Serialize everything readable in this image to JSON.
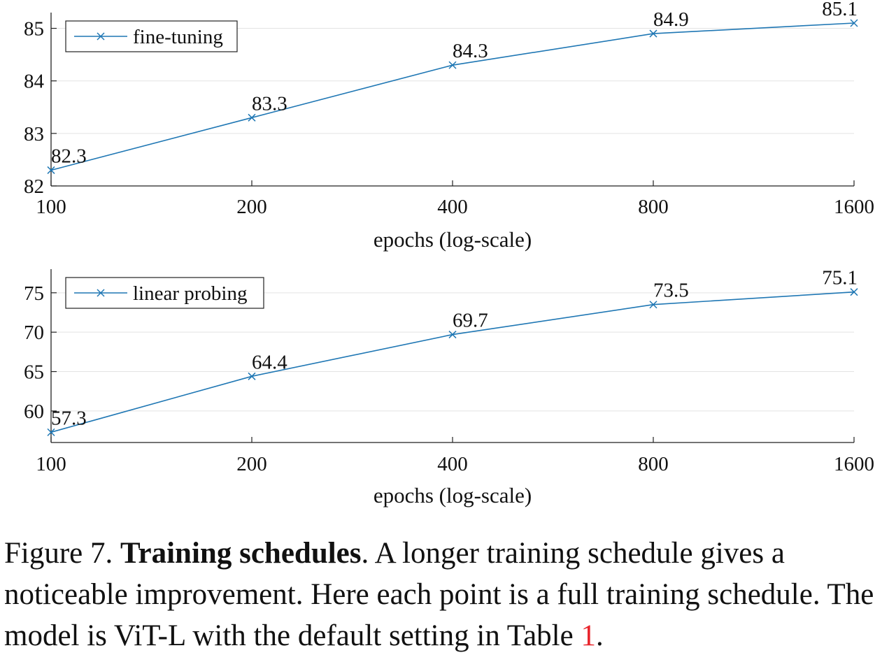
{
  "chart_data": [
    {
      "type": "line",
      "x": [
        100,
        200,
        400,
        800,
        1600
      ],
      "xscale": "log",
      "xlabel": "epochs (log-scale)",
      "xticks": [
        "100",
        "200",
        "400",
        "800",
        "1600"
      ],
      "ylim": [
        82,
        85.3
      ],
      "yticks": [
        "82",
        "83",
        "84",
        "85"
      ],
      "grid": "horizontal",
      "legend": "top-left",
      "series": [
        {
          "name": "fine-tuning",
          "values": [
            82.3,
            83.3,
            84.3,
            84.9,
            85.1
          ],
          "labels": [
            "82.3",
            "83.3",
            "84.3",
            "84.9",
            "85.1"
          ],
          "color": "#1f77b4",
          "marker": "x"
        }
      ]
    },
    {
      "type": "line",
      "x": [
        100,
        200,
        400,
        800,
        1600
      ],
      "xscale": "log",
      "xlabel": "epochs (log-scale)",
      "xticks": [
        "100",
        "200",
        "400",
        "800",
        "1600"
      ],
      "ylim": [
        56,
        78
      ],
      "yticks": [
        "60",
        "65",
        "70",
        "75"
      ],
      "grid": "horizontal",
      "legend": "top-left",
      "series": [
        {
          "name": "linear probing",
          "values": [
            57.3,
            64.4,
            69.7,
            73.5,
            75.1
          ],
          "labels": [
            "57.3",
            "64.4",
            "69.7",
            "73.5",
            "75.1"
          ],
          "color": "#1f77b4",
          "marker": "x"
        }
      ]
    }
  ],
  "caption": {
    "prefix": "Figure 7. ",
    "bold": "Training schedules",
    "text": ". A longer training schedule gives a noticeable improvement. Here each point is a full training schedule. The model is ViT-L with the default setting in Table ",
    "ref": "1",
    "suffix": "."
  }
}
